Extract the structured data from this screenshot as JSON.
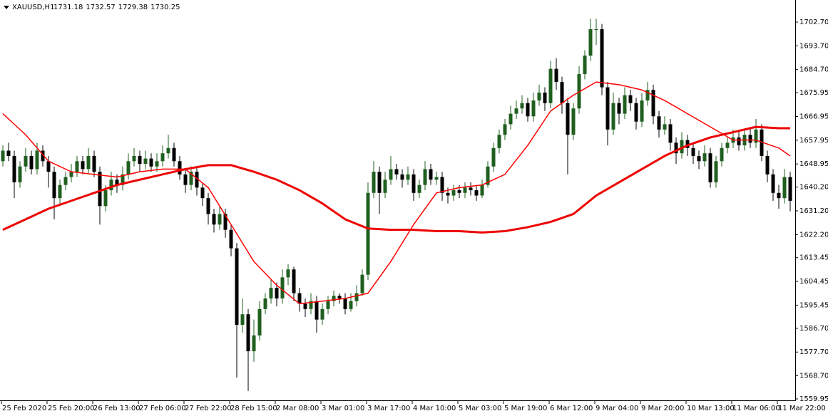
{
  "chart_data": {
    "type": "candlestick",
    "symbol": "XAUUSD,H1",
    "header_values": [
      1731.18,
      1732.57,
      1729.38,
      1730.25
    ],
    "categories": [
      "25 Feb 2020",
      null,
      null,
      null,
      null,
      null,
      null,
      null,
      "25 Feb 20:00",
      null,
      null,
      null,
      null,
      null,
      null,
      null,
      "26 Feb 13:00",
      null,
      null,
      null,
      null,
      null,
      null,
      null,
      "27 Feb 06:00",
      null,
      null,
      null,
      null,
      null,
      null,
      null,
      "27 Feb 22:00",
      null,
      null,
      null,
      null,
      null,
      null,
      null,
      "28 Feb 15:00",
      null,
      null,
      null,
      null,
      null,
      null,
      null,
      "2 Mar 08:00",
      null,
      null,
      null,
      null,
      null,
      null,
      null,
      "3 Mar 01:00",
      null,
      null,
      null,
      null,
      null,
      null,
      null,
      "3 Mar 17:00",
      null,
      null,
      null,
      null,
      null,
      null,
      null,
      "4 Mar 10:00",
      null,
      null,
      null,
      null,
      null,
      null,
      null,
      "5 Mar 03:00",
      null,
      null,
      null,
      null,
      null,
      null,
      null,
      "5 Mar 19:00",
      null,
      null,
      null,
      null,
      null,
      null,
      null,
      "6 Mar 12:00",
      null,
      null,
      null,
      null,
      null,
      null,
      null,
      "9 Mar 04:00",
      null,
      null,
      null,
      null,
      null,
      null,
      null,
      "9 Mar 20:00",
      null,
      null,
      null,
      null,
      null,
      null,
      null,
      "10 Mar 13:00",
      null,
      null,
      null,
      null,
      null,
      null,
      null,
      "11 Mar 06:00",
      null,
      null,
      null,
      null,
      null,
      null,
      null,
      "11 Mar 22:00",
      null,
      null
    ],
    "open": [
      1650,
      1654,
      1652,
      1642,
      1648,
      1652,
      1647,
      1654,
      1650,
      1646,
      1636,
      1641,
      1644,
      1646,
      1650,
      1647,
      1652,
      1646,
      1633,
      1639,
      1643,
      1641,
      1645,
      1650,
      1652,
      1649,
      1651,
      1648,
      1650,
      1653,
      1655,
      1650,
      1645,
      1641,
      1646,
      1640,
      1636,
      1630,
      1626,
      1630,
      1624,
      1617,
      1588,
      1592,
      1578,
      1584,
      1594,
      1598,
      1602,
      1598,
      1606,
      1609,
      1600,
      1596,
      1594,
      1597,
      1590,
      1594,
      1597,
      1599,
      1598,
      1594,
      1597,
      1600,
      1607,
      1638,
      1646,
      1638,
      1643,
      1647,
      1645,
      1643,
      1645,
      1638,
      1641,
      1647,
      1643,
      1644,
      1638,
      1637,
      1639,
      1638,
      1640,
      1639,
      1637,
      1641,
      1648,
      1655,
      1660,
      1664,
      1668,
      1670,
      1672,
      1667,
      1673,
      1676,
      1672,
      1685,
      1680,
      1672,
      1660,
      1670,
      1683,
      1690,
      1700,
      1700,
      1678,
      1662,
      1672,
      1668,
      1675,
      1672,
      1665,
      1673,
      1677,
      1667,
      1662,
      1664,
      1657,
      1653,
      1658,
      1655,
      1652,
      1650,
      1653,
      1642,
      1650,
      1655,
      1657,
      1659,
      1656,
      1660,
      1657,
      1662,
      1652,
      1645,
      1638,
      1636,
      1644
    ],
    "high": [
      1656,
      1657,
      1654,
      1650,
      1655,
      1654,
      1657,
      1656,
      1652,
      1648,
      1643,
      1646,
      1649,
      1652,
      1652,
      1655,
      1654,
      1648,
      1641,
      1646,
      1645,
      1648,
      1653,
      1655,
      1654,
      1654,
      1653,
      1653,
      1656,
      1660,
      1657,
      1652,
      1647,
      1648,
      1648,
      1642,
      1638,
      1632,
      1633,
      1632,
      1626,
      1619,
      1598,
      1594,
      1590,
      1597,
      1600,
      1605,
      1604,
      1609,
      1611,
      1610,
      1602,
      1598,
      1600,
      1599,
      1596,
      1599,
      1601,
      1600,
      1600,
      1600,
      1603,
      1609,
      1642,
      1650,
      1648,
      1646,
      1652,
      1649,
      1647,
      1648,
      1647,
      1643,
      1650,
      1649,
      1646,
      1646,
      1640,
      1641,
      1641,
      1642,
      1642,
      1641,
      1643,
      1650,
      1657,
      1662,
      1666,
      1671,
      1673,
      1675,
      1674,
      1676,
      1679,
      1678,
      1688,
      1689,
      1682,
      1674,
      1672,
      1686,
      1692,
      1704,
      1704,
      1702,
      1680,
      1676,
      1674,
      1678,
      1677,
      1674,
      1676,
      1680,
      1679,
      1669,
      1667,
      1666,
      1659,
      1661,
      1660,
      1657,
      1654,
      1656,
      1655,
      1652,
      1657,
      1659,
      1662,
      1661,
      1662,
      1663,
      1666,
      1664,
      1654,
      1647,
      1641,
      1647,
      1646
    ],
    "low": [
      1648,
      1650,
      1636,
      1640,
      1646,
      1645,
      1645,
      1648,
      1640,
      1628,
      1633,
      1639,
      1642,
      1644,
      1645,
      1645,
      1644,
      1626,
      1631,
      1637,
      1638,
      1639,
      1643,
      1648,
      1646,
      1647,
      1646,
      1646,
      1648,
      1651,
      1648,
      1643,
      1638,
      1639,
      1637,
      1633,
      1626,
      1623,
      1624,
      1621,
      1614,
      1568,
      1585,
      1563,
      1574,
      1582,
      1592,
      1596,
      1595,
      1596,
      1603,
      1597,
      1593,
      1591,
      1592,
      1585,
      1588,
      1592,
      1595,
      1596,
      1592,
      1593,
      1595,
      1599,
      1605,
      1636,
      1630,
      1636,
      1641,
      1643,
      1640,
      1641,
      1635,
      1636,
      1639,
      1641,
      1641,
      1635,
      1634,
      1635,
      1636,
      1636,
      1637,
      1635,
      1636,
      1640,
      1646,
      1653,
      1658,
      1662,
      1666,
      1668,
      1665,
      1665,
      1671,
      1669,
      1670,
      1677,
      1668,
      1645,
      1658,
      1668,
      1681,
      1688,
      1694,
      1675,
      1656,
      1660,
      1664,
      1666,
      1669,
      1662,
      1663,
      1671,
      1664,
      1659,
      1660,
      1654,
      1649,
      1651,
      1652,
      1649,
      1647,
      1648,
      1640,
      1640,
      1648,
      1653,
      1655,
      1654,
      1654,
      1655,
      1655,
      1650,
      1642,
      1635,
      1632,
      1634,
      1631
    ],
    "close": [
      1654,
      1652,
      1642,
      1648,
      1652,
      1647,
      1654,
      1650,
      1646,
      1636,
      1641,
      1644,
      1646,
      1650,
      1647,
      1652,
      1646,
      1633,
      1639,
      1643,
      1641,
      1645,
      1650,
      1652,
      1649,
      1651,
      1648,
      1650,
      1653,
      1655,
      1650,
      1645,
      1641,
      1646,
      1640,
      1636,
      1630,
      1626,
      1630,
      1624,
      1617,
      1588,
      1592,
      1578,
      1584,
      1594,
      1598,
      1602,
      1598,
      1606,
      1609,
      1600,
      1596,
      1594,
      1597,
      1590,
      1594,
      1597,
      1599,
      1598,
      1594,
      1597,
      1600,
      1607,
      1638,
      1646,
      1638,
      1643,
      1647,
      1645,
      1643,
      1645,
      1638,
      1641,
      1647,
      1643,
      1644,
      1638,
      1637,
      1639,
      1638,
      1640,
      1639,
      1637,
      1641,
      1648,
      1655,
      1660,
      1664,
      1668,
      1670,
      1672,
      1667,
      1673,
      1676,
      1672,
      1685,
      1680,
      1672,
      1660,
      1670,
      1683,
      1690,
      1700,
      1700,
      1678,
      1662,
      1672,
      1668,
      1675,
      1672,
      1665,
      1673,
      1677,
      1667,
      1662,
      1664,
      1657,
      1653,
      1658,
      1655,
      1652,
      1650,
      1653,
      1642,
      1650,
      1655,
      1657,
      1659,
      1656,
      1660,
      1657,
      1662,
      1652,
      1645,
      1638,
      1636,
      1644,
      1635
    ],
    "up_color": "#1f5f1f",
    "down_color": "#000000",
    "lines": [
      {
        "color": "#ff0000",
        "width": 1.5,
        "x": [
          0,
          4,
          8,
          12,
          16,
          20,
          24,
          28,
          32,
          36,
          40,
          44,
          48,
          52,
          56,
          60,
          64,
          68,
          72,
          76,
          80,
          84,
          88,
          92,
          96,
          100,
          104,
          108,
          112,
          116,
          120,
          124,
          128,
          132,
          136,
          138
        ],
        "values": [
          1668,
          1660,
          1650,
          1646,
          1645,
          1644,
          1646,
          1647,
          1647,
          1640,
          1626,
          1612,
          1603,
          1596,
          1597,
          1598,
          1600,
          1612,
          1626,
          1638,
          1640,
          1641,
          1645,
          1656,
          1669,
          1675,
          1680,
          1679,
          1677,
          1673,
          1668,
          1663,
          1658,
          1658,
          1655,
          1652
        ]
      },
      {
        "color": "#ee0000",
        "width": 3,
        "x": [
          0,
          4,
          8,
          12,
          16,
          20,
          24,
          28,
          32,
          36,
          40,
          44,
          48,
          52,
          56,
          60,
          64,
          68,
          72,
          76,
          80,
          84,
          88,
          92,
          96,
          100,
          104,
          108,
          112,
          116,
          120,
          124,
          128,
          132,
          136,
          138
        ],
        "values": [
          1624,
          1628,
          1632,
          1635,
          1638,
          1641,
          1643,
          1645,
          1647,
          1648.5,
          1648.5,
          1646,
          1643,
          1639,
          1634,
          1628,
          1624.5,
          1624,
          1624,
          1623.5,
          1623.5,
          1623,
          1623.5,
          1625,
          1627,
          1630,
          1637,
          1642,
          1647,
          1652,
          1656,
          1659,
          1661,
          1663,
          1662.5,
          1662.5
        ]
      }
    ],
    "ylim": [
      1559.41,
      1711.07
    ],
    "yticks": [
      {
        "value": 1702.7,
        "label": "1702.70"
      },
      {
        "value": 1693.7,
        "label": "1693.70"
      },
      {
        "value": 1684.7,
        "label": "1684.70"
      },
      {
        "value": 1675.95,
        "label": "1675.95"
      },
      {
        "value": 1666.95,
        "label": "1666.95"
      },
      {
        "value": 1657.95,
        "label": "1657.95"
      },
      {
        "value": 1648.95,
        "label": "1648.95"
      },
      {
        "value": 1640.2,
        "label": "1640.20"
      },
      {
        "value": 1631.2,
        "label": "1631.20"
      },
      {
        "value": 1622.2,
        "label": "1622.20"
      },
      {
        "value": 1613.45,
        "label": "1613.45"
      },
      {
        "value": 1604.45,
        "label": "1604.45"
      },
      {
        "value": 1595.45,
        "label": "1595.45"
      },
      {
        "value": 1586.7,
        "label": "1586.70"
      },
      {
        "value": 1577.7,
        "label": "1577.70"
      },
      {
        "value": 1568.7,
        "label": "1568.70"
      },
      {
        "value": 1559.95,
        "label": "1559.95"
      }
    ]
  }
}
